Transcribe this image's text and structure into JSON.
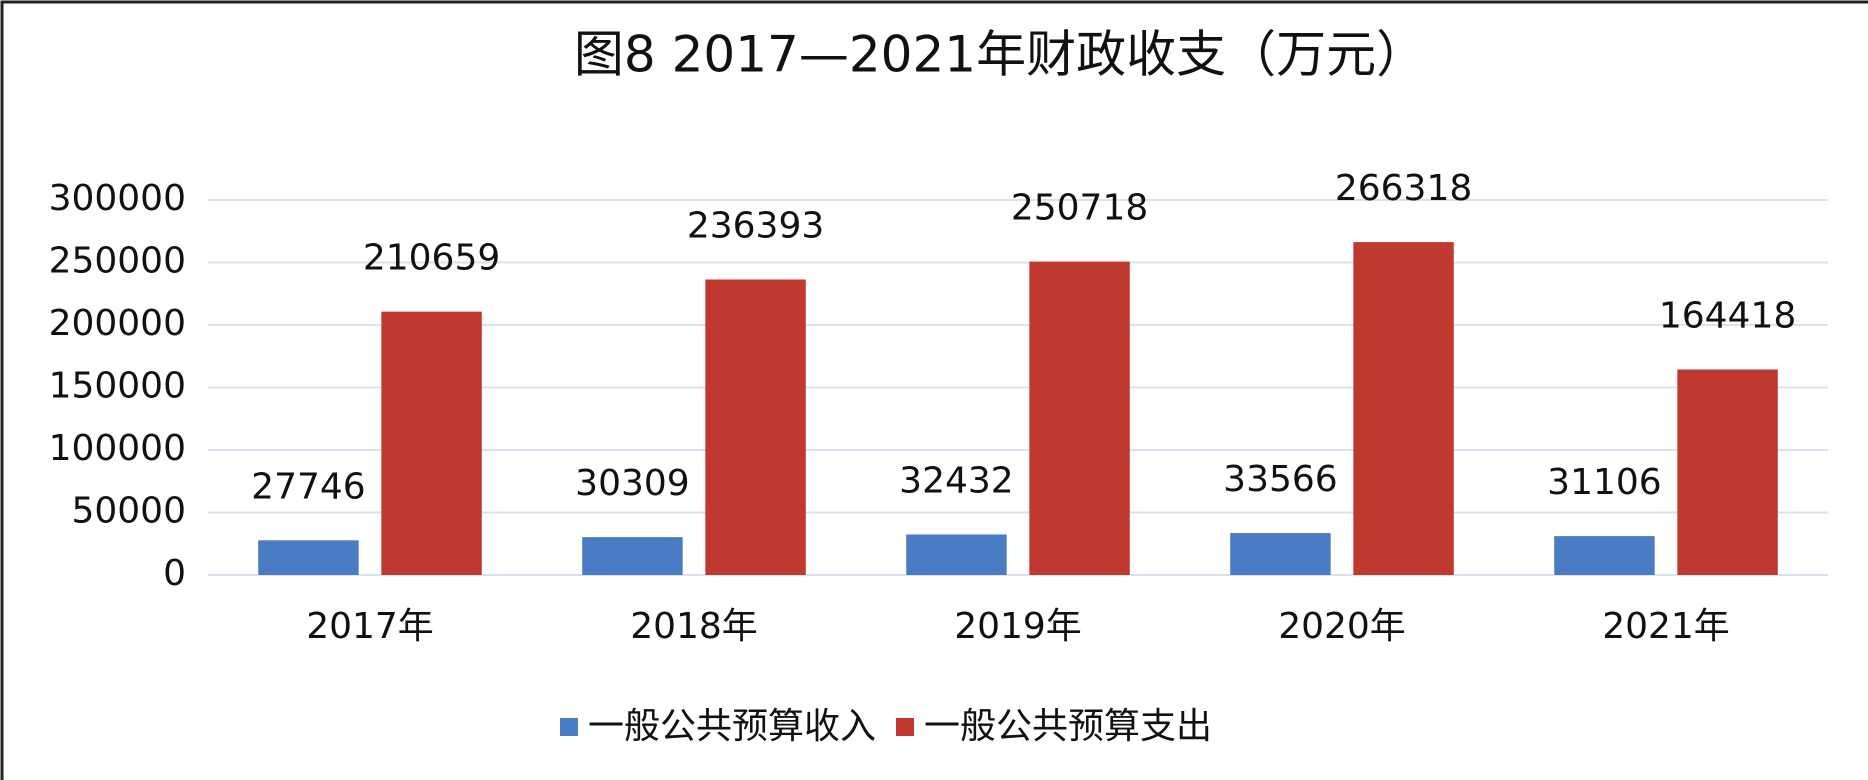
{
  "chart_data": {
    "type": "bar",
    "title": "图8  2017—2021年财政收支（万元）",
    "categories": [
      "2017年",
      "2018年",
      "2019年",
      "2020年",
      "2021年"
    ],
    "series": [
      {
        "name": "一般公共预算收入",
        "color": "#4a7cc4",
        "values": [
          27746,
          30309,
          32432,
          33566,
          31106
        ]
      },
      {
        "name": "一般公共预算支出",
        "color": "#c0392f",
        "values": [
          210659,
          236393,
          250718,
          266318,
          164418
        ]
      }
    ],
    "ylim": [
      0,
      300000
    ],
    "yticks": [
      0,
      50000,
      100000,
      150000,
      200000,
      250000,
      300000
    ],
    "grid": true,
    "legend": "bottom"
  }
}
